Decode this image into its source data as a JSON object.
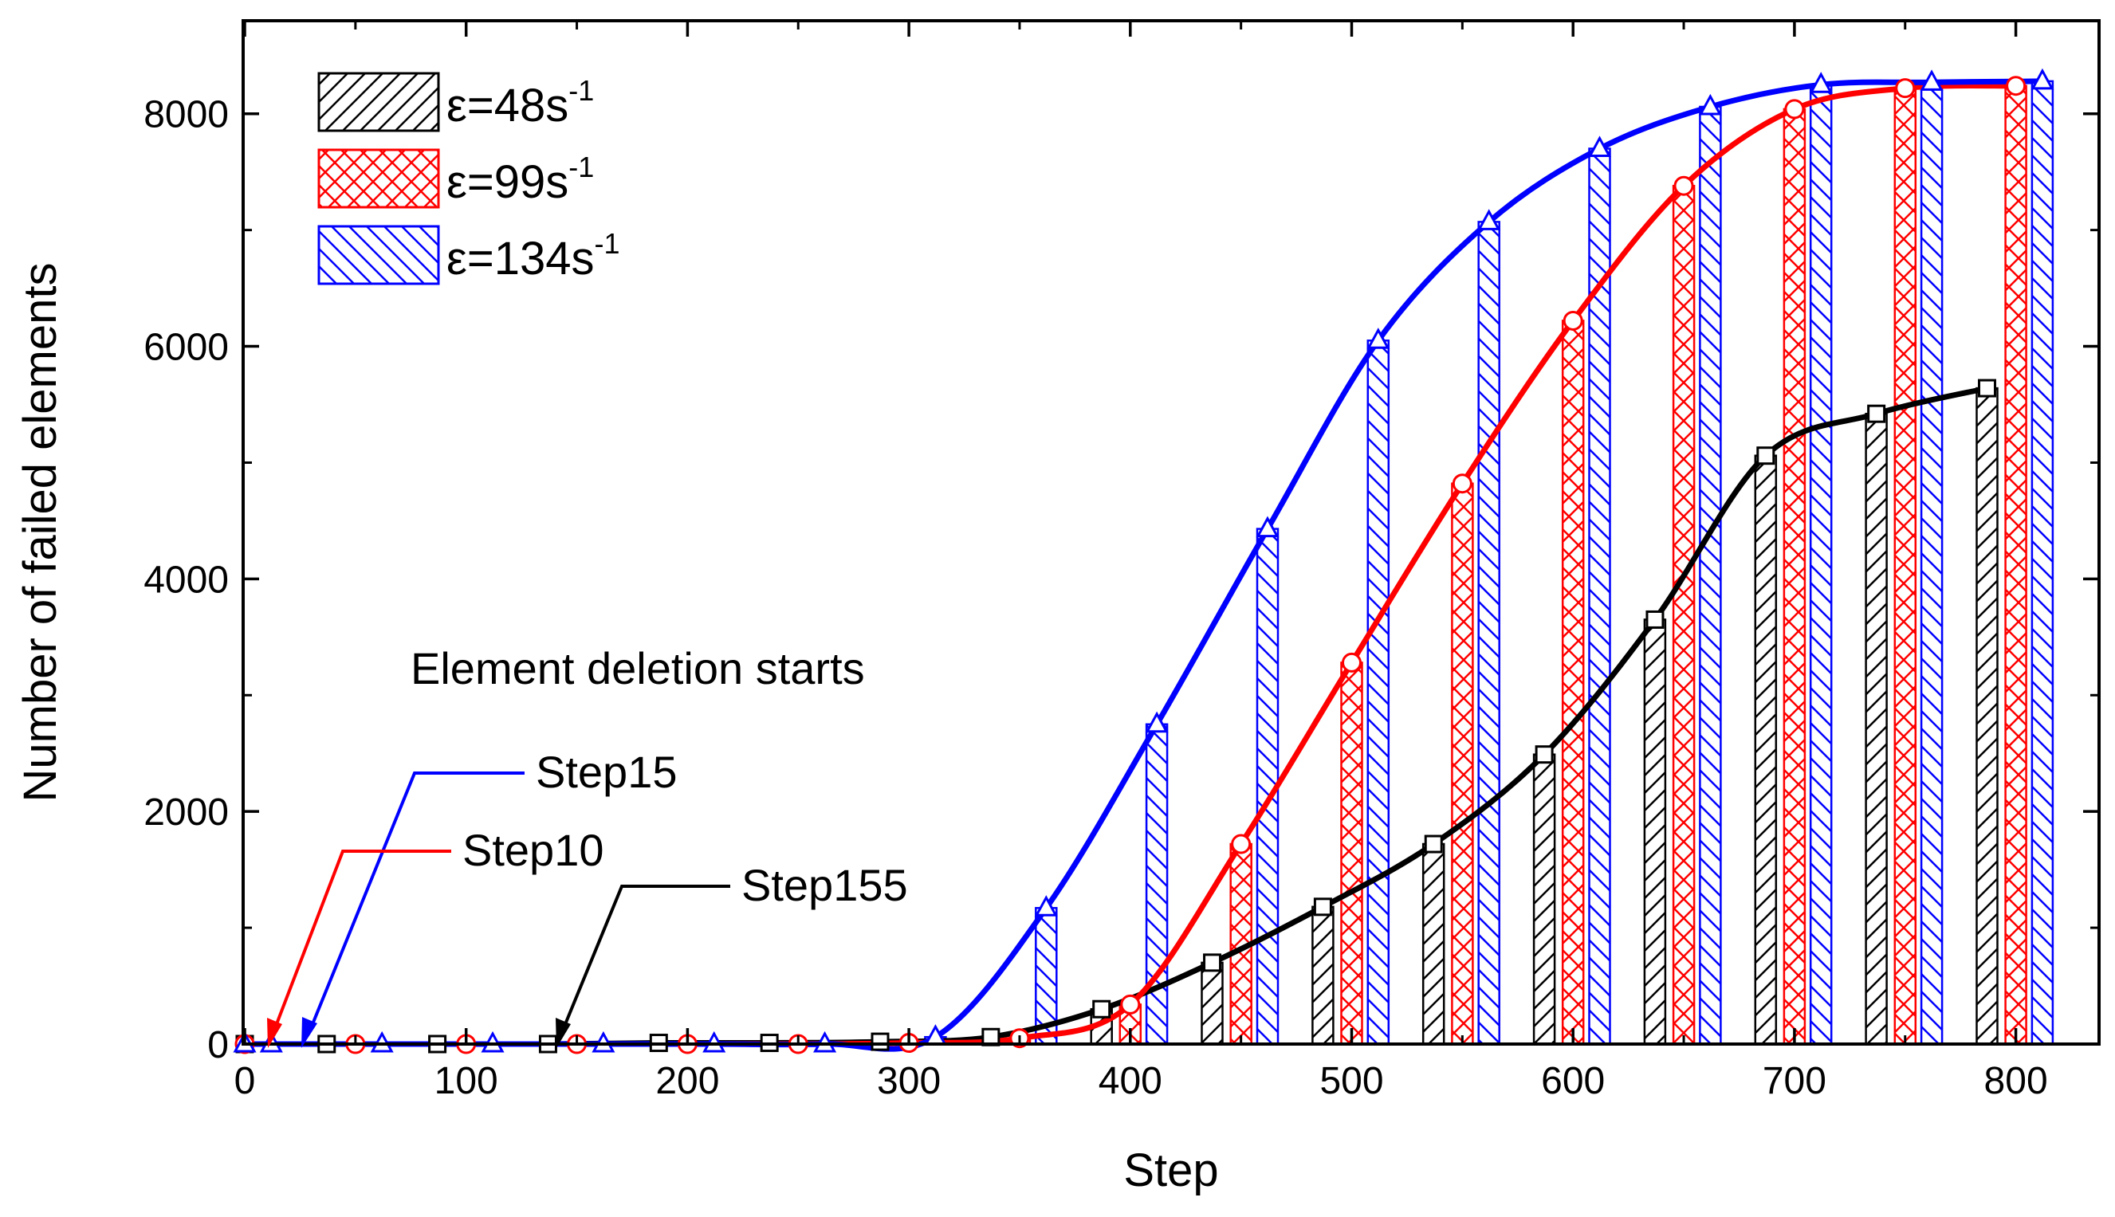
{
  "chart_data": {
    "type": "bar",
    "title": "",
    "xlabel": "Step",
    "ylabel": "Number of failed elements",
    "xlim": [
      0,
      840
    ],
    "ylim": [
      0,
      8800
    ],
    "xticks": [
      0,
      100,
      200,
      300,
      400,
      500,
      600,
      700,
      800
    ],
    "yticks": [
      0,
      2000,
      4000,
      6000,
      8000
    ],
    "grid": false,
    "legend_position": "top-left",
    "colors": {
      "s48": "#000000",
      "s99": "#ff0000",
      "s134": "#0000ff"
    },
    "series": [
      {
        "name": "ε=48s",
        "legend_sup": "-1",
        "marker": "square",
        "color": "#000000",
        "bar_pattern": "diagonal-up",
        "x": [
          0,
          37,
          87,
          137,
          187,
          237,
          287,
          337,
          387,
          437,
          487,
          537,
          587,
          637,
          687,
          737,
          787
        ],
        "values": [
          0,
          0,
          0,
          0,
          10,
          10,
          20,
          60,
          300,
          700,
          1180,
          1720,
          2490,
          3650,
          5060,
          5420,
          5640
        ]
      },
      {
        "name": "ε=99s",
        "legend_sup": "-1",
        "marker": "circle",
        "color": "#ff0000",
        "bar_pattern": "cross-hatch",
        "x": [
          0,
          50,
          100,
          150,
          200,
          250,
          300,
          350,
          400,
          450,
          500,
          550,
          600,
          650,
          700,
          750,
          800
        ],
        "values": [
          0,
          0,
          0,
          0,
          0,
          0,
          10,
          50,
          340,
          1720,
          3280,
          4820,
          6220,
          7380,
          8040,
          8220,
          8240
        ]
      },
      {
        "name": "ε=134s",
        "legend_sup": "-1",
        "marker": "triangle",
        "color": "#0000ff",
        "bar_pattern": "diagonal-down",
        "x": [
          0,
          12,
          62,
          112,
          162,
          212,
          262,
          312,
          362,
          412,
          462,
          512,
          562,
          612,
          662,
          712,
          762,
          812
        ],
        "values": [
          0,
          0,
          0,
          0,
          0,
          0,
          0,
          60,
          1170,
          2750,
          4430,
          6050,
          7070,
          7700,
          8060,
          8250,
          8270,
          8280
        ]
      }
    ],
    "annotations": {
      "heading": "Element deletion starts",
      "step15": "Step15",
      "step10": "Step10",
      "step155": "Step155"
    }
  }
}
